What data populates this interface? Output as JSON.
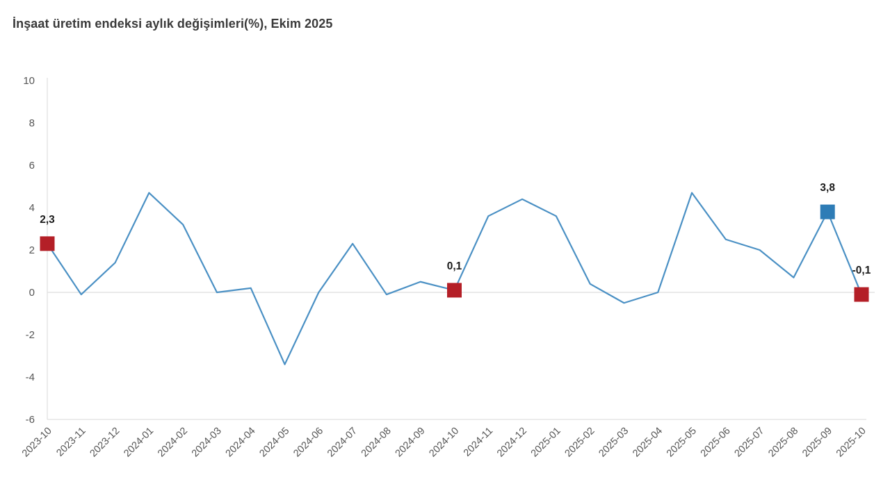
{
  "title": "İnşaat üretim endeksi aylık değişimleri(%), Ekim 2025",
  "colors": {
    "line": "#4a90c4",
    "marker_red": "#b41f27",
    "marker_blue": "#2e7cb6",
    "zero_line": "#e4e4e4",
    "axis": "#d9d9d9",
    "tick_text": "#555555",
    "title_text": "#3a3a3a",
    "label_text": "#1a1a1a"
  },
  "chart_data": {
    "type": "line",
    "title": "İnşaat üretim endeksi aylık değişimleri(%), Ekim 2025",
    "xlabel": "",
    "ylabel": "",
    "ylim": [
      -6,
      10
    ],
    "yticks": [
      10,
      8,
      6,
      4,
      2,
      0,
      -2,
      -4,
      -6
    ],
    "grid": "zero-line-only",
    "legend_position": "none",
    "x_tick_rotation_deg": -45,
    "categories": [
      "2023-10",
      "2023-11",
      "2023-12",
      "2024-01",
      "2024-02",
      "2024-03",
      "2024-04",
      "2024-05",
      "2024-06",
      "2024-07",
      "2024-08",
      "2024-09",
      "2024-10",
      "2024-11",
      "2024-12",
      "2025-01",
      "2025-02",
      "2025-03",
      "2025-04",
      "2025-05",
      "2025-06",
      "2025-07",
      "2025-08",
      "2025-09",
      "2025-10"
    ],
    "values": [
      2.3,
      -0.1,
      1.4,
      4.7,
      3.2,
      0.0,
      0.2,
      -3.4,
      0.0,
      2.3,
      -0.1,
      0.5,
      0.1,
      3.6,
      4.4,
      3.6,
      0.4,
      -0.5,
      0.0,
      4.7,
      2.5,
      2.0,
      0.7,
      3.8,
      -0.1
    ],
    "highlighted_points": [
      {
        "category": "2023-10",
        "value": 2.3,
        "label": "2,3",
        "color": "red"
      },
      {
        "category": "2024-10",
        "value": 0.1,
        "label": "0,1",
        "color": "red"
      },
      {
        "category": "2025-09",
        "value": 3.8,
        "label": "3,8",
        "color": "blue"
      },
      {
        "category": "2025-10",
        "value": -0.1,
        "label": "-0,1",
        "color": "red"
      }
    ]
  }
}
